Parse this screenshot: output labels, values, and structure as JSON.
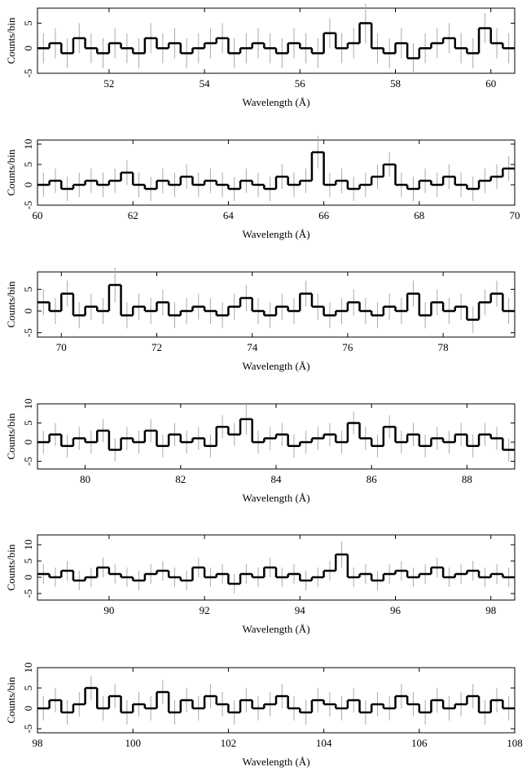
{
  "chart_data": [
    {
      "type": "step",
      "xlabel": "Wavelength (Å)",
      "ylabel": "Counts/bin",
      "xlim": [
        50.5,
        60.5
      ],
      "ylim": [
        -5,
        8
      ],
      "xticks": [
        52,
        54,
        56,
        58,
        60
      ],
      "yticks": [
        -5,
        0,
        5
      ],
      "color": "#000000",
      "error_color": "#aaaaaa",
      "x": [
        50.625,
        50.875,
        51.125,
        51.375,
        51.625,
        51.875,
        52.125,
        52.375,
        52.625,
        52.875,
        53.125,
        53.375,
        53.625,
        53.875,
        54.125,
        54.375,
        54.625,
        54.875,
        55.125,
        55.375,
        55.625,
        55.875,
        56.125,
        56.375,
        56.625,
        56.875,
        57.125,
        57.375,
        57.625,
        57.875,
        58.125,
        58.375,
        58.625,
        58.875,
        59.125,
        59.375,
        59.625,
        59.875,
        60.125,
        60.375
      ],
      "values": [
        0,
        1,
        -1,
        2,
        0,
        -1,
        1,
        0,
        -1,
        2,
        0,
        1,
        -1,
        0,
        1,
        2,
        -1,
        0,
        1,
        0,
        -1,
        1,
        0,
        -1,
        3,
        0,
        1,
        5,
        0,
        -1,
        1,
        -2,
        0,
        1,
        2,
        0,
        -1,
        4,
        1,
        0
      ],
      "errors": [
        3,
        3,
        3,
        3,
        3,
        3,
        3,
        3,
        3,
        3,
        3,
        3,
        3,
        3,
        3,
        3,
        3,
        3,
        3,
        3,
        3,
        3,
        3,
        3,
        3,
        3,
        3,
        4,
        3,
        3,
        3,
        3,
        3,
        3,
        3,
        3,
        3,
        3,
        3,
        3
      ]
    },
    {
      "type": "step",
      "xlabel": "Wavelength (Å)",
      "ylabel": "Counts/bin",
      "xlim": [
        60,
        70
      ],
      "ylim": [
        -5,
        11
      ],
      "xticks": [
        60,
        62,
        64,
        66,
        68,
        70
      ],
      "yticks": [
        -5,
        0,
        5,
        10
      ],
      "color": "#000000",
      "error_color": "#aaaaaa",
      "x": [
        60.125,
        60.375,
        60.625,
        60.875,
        61.125,
        61.375,
        61.625,
        61.875,
        62.125,
        62.375,
        62.625,
        62.875,
        63.125,
        63.375,
        63.625,
        63.875,
        64.125,
        64.375,
        64.625,
        64.875,
        65.125,
        65.375,
        65.625,
        65.875,
        66.125,
        66.375,
        66.625,
        66.875,
        67.125,
        67.375,
        67.625,
        67.875,
        68.125,
        68.375,
        68.625,
        68.875,
        69.125,
        69.375,
        69.625,
        69.875
      ],
      "values": [
        0,
        1,
        -1,
        0,
        1,
        0,
        1,
        3,
        0,
        -1,
        1,
        0,
        2,
        0,
        1,
        0,
        -1,
        1,
        0,
        -1,
        2,
        0,
        1,
        8,
        0,
        1,
        -1,
        0,
        2,
        5,
        0,
        -1,
        1,
        0,
        2,
        0,
        -1,
        1,
        2,
        4
      ],
      "errors": [
        3,
        3,
        3,
        3,
        3,
        3,
        3,
        3,
        3,
        3,
        3,
        3,
        3,
        3,
        3,
        3,
        3,
        3,
        3,
        3,
        3,
        3,
        3,
        4,
        3,
        3,
        3,
        3,
        3,
        3,
        3,
        3,
        3,
        3,
        3,
        3,
        3,
        3,
        3,
        3
      ]
    },
    {
      "type": "step",
      "xlabel": "Wavelength (Å)",
      "ylabel": "Counts/bin",
      "xlim": [
        69.5,
        79.5
      ],
      "ylim": [
        -6,
        9
      ],
      "xticks": [
        70,
        72,
        74,
        76,
        78
      ],
      "yticks": [
        -5,
        0,
        5
      ],
      "color": "#000000",
      "error_color": "#aaaaaa",
      "x": [
        69.625,
        69.875,
        70.125,
        70.375,
        70.625,
        70.875,
        71.125,
        71.375,
        71.625,
        71.875,
        72.125,
        72.375,
        72.625,
        72.875,
        73.125,
        73.375,
        73.625,
        73.875,
        74.125,
        74.375,
        74.625,
        74.875,
        75.125,
        75.375,
        75.625,
        75.875,
        76.125,
        76.375,
        76.625,
        76.875,
        77.125,
        77.375,
        77.625,
        77.875,
        78.125,
        78.375,
        78.625,
        78.875,
        79.125,
        79.375
      ],
      "values": [
        2,
        0,
        4,
        -1,
        1,
        0,
        6,
        -1,
        1,
        0,
        2,
        -1,
        0,
        1,
        0,
        -1,
        1,
        3,
        0,
        -1,
        1,
        0,
        4,
        1,
        -1,
        0,
        2,
        0,
        -1,
        1,
        0,
        4,
        -1,
        2,
        0,
        1,
        -2,
        2,
        4,
        0
      ],
      "errors": [
        3,
        3,
        3,
        3,
        3,
        3,
        4,
        3,
        3,
        3,
        3,
        3,
        3,
        3,
        3,
        3,
        3,
        3,
        3,
        3,
        3,
        3,
        3,
        3,
        3,
        3,
        3,
        3,
        3,
        3,
        3,
        3,
        3,
        3,
        3,
        3,
        3,
        3,
        3,
        3
      ]
    },
    {
      "type": "step",
      "xlabel": "Wavelength (Å)",
      "ylabel": "Counts/bin",
      "xlim": [
        79,
        89
      ],
      "ylim": [
        -7,
        10
      ],
      "xticks": [
        80,
        82,
        84,
        86,
        88
      ],
      "yticks": [
        -5,
        0,
        5,
        10
      ],
      "color": "#000000",
      "error_color": "#aaaaaa",
      "x": [
        79.125,
        79.375,
        79.625,
        79.875,
        80.125,
        80.375,
        80.625,
        80.875,
        81.125,
        81.375,
        81.625,
        81.875,
        82.125,
        82.375,
        82.625,
        82.875,
        83.125,
        83.375,
        83.625,
        83.875,
        84.125,
        84.375,
        84.625,
        84.875,
        85.125,
        85.375,
        85.625,
        85.875,
        86.125,
        86.375,
        86.625,
        86.875,
        87.125,
        87.375,
        87.625,
        87.875,
        88.125,
        88.375,
        88.625,
        88.875
      ],
      "values": [
        0,
        2,
        -1,
        1,
        0,
        3,
        -2,
        1,
        0,
        3,
        -1,
        2,
        0,
        1,
        -1,
        4,
        2,
        6,
        0,
        1,
        2,
        -1,
        0,
        1,
        2,
        0,
        5,
        1,
        -1,
        4,
        0,
        2,
        -1,
        1,
        0,
        2,
        -1,
        2,
        1,
        -2
      ],
      "errors": [
        3,
        3,
        3,
        3,
        3,
        3,
        3,
        3,
        3,
        3,
        3,
        3,
        3,
        3,
        3,
        3,
        3,
        4,
        3,
        3,
        3,
        3,
        3,
        3,
        3,
        3,
        3,
        3,
        3,
        3,
        3,
        3,
        3,
        3,
        3,
        3,
        3,
        3,
        3,
        3
      ]
    },
    {
      "type": "step",
      "xlabel": "Wavelength (Å)",
      "ylabel": "Counts/bin",
      "xlim": [
        88.5,
        98.5
      ],
      "ylim": [
        -7,
        13
      ],
      "xticks": [
        90,
        92,
        94,
        96,
        98
      ],
      "yticks": [
        -5,
        0,
        5,
        10
      ],
      "color": "#000000",
      "error_color": "#aaaaaa",
      "x": [
        88.625,
        88.875,
        89.125,
        89.375,
        89.625,
        89.875,
        90.125,
        90.375,
        90.625,
        90.875,
        91.125,
        91.375,
        91.625,
        91.875,
        92.125,
        92.375,
        92.625,
        92.875,
        93.125,
        93.375,
        93.625,
        93.875,
        94.125,
        94.375,
        94.625,
        94.875,
        95.125,
        95.375,
        95.625,
        95.875,
        96.125,
        96.375,
        96.625,
        96.875,
        97.125,
        97.375,
        97.625,
        97.875,
        98.125,
        98.375
      ],
      "values": [
        1,
        0,
        2,
        -1,
        0,
        3,
        1,
        0,
        -1,
        1,
        2,
        0,
        -1,
        3,
        0,
        1,
        -2,
        1,
        0,
        3,
        0,
        1,
        -1,
        0,
        2,
        7,
        0,
        1,
        -1,
        1,
        2,
        0,
        1,
        3,
        0,
        1,
        2,
        0,
        1,
        0
      ],
      "errors": [
        3,
        3,
        3,
        3,
        3,
        3,
        3,
        3,
        3,
        3,
        3,
        3,
        3,
        3,
        3,
        3,
        3,
        3,
        3,
        3,
        3,
        3,
        3,
        3,
        3,
        4,
        3,
        3,
        3,
        3,
        3,
        3,
        3,
        3,
        3,
        3,
        3,
        3,
        3,
        3
      ]
    },
    {
      "type": "step",
      "xlabel": "Wavelength (Å)",
      "ylabel": "Counts/bin",
      "xlim": [
        98,
        108
      ],
      "ylim": [
        -6,
        10
      ],
      "xticks": [
        98,
        100,
        102,
        104,
        106,
        108
      ],
      "yticks": [
        -5,
        0,
        5,
        10
      ],
      "color": "#000000",
      "error_color": "#aaaaaa",
      "x": [
        98.125,
        98.375,
        98.625,
        98.875,
        99.125,
        99.375,
        99.625,
        99.875,
        100.125,
        100.375,
        100.625,
        100.875,
        101.125,
        101.375,
        101.625,
        101.875,
        102.125,
        102.375,
        102.625,
        102.875,
        103.125,
        103.375,
        103.625,
        103.875,
        104.125,
        104.375,
        104.625,
        104.875,
        105.125,
        105.375,
        105.625,
        105.875,
        106.125,
        106.375,
        106.625,
        106.875,
        107.125,
        107.375,
        107.625,
        107.875
      ],
      "values": [
        0,
        2,
        -1,
        1,
        5,
        0,
        3,
        -1,
        1,
        0,
        4,
        -1,
        2,
        0,
        3,
        1,
        -1,
        2,
        0,
        1,
        3,
        0,
        -1,
        2,
        1,
        0,
        2,
        -1,
        1,
        0,
        3,
        1,
        -1,
        2,
        0,
        1,
        3,
        -1,
        2,
        0
      ],
      "errors": [
        3,
        3,
        3,
        3,
        3,
        3,
        3,
        3,
        3,
        3,
        3,
        3,
        3,
        3,
        3,
        3,
        3,
        3,
        3,
        3,
        3,
        3,
        3,
        3,
        3,
        3,
        3,
        3,
        3,
        3,
        3,
        3,
        3,
        3,
        3,
        3,
        3,
        3,
        3,
        3
      ]
    }
  ]
}
